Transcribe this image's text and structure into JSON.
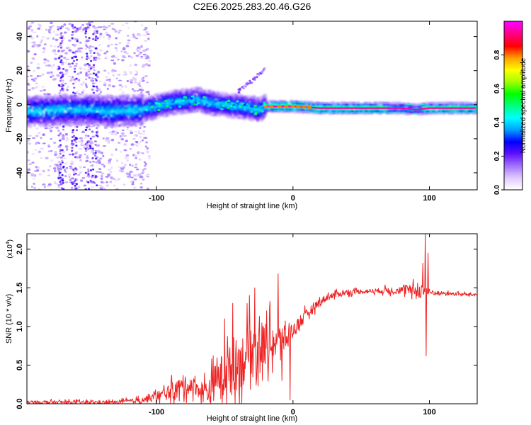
{
  "title": "C2E6.2025.283.20.46.G26",
  "chart_data": [
    {
      "type": "heatmap",
      "name": "spectrogram",
      "xlabel": "Height of straight line (km)",
      "ylabel": "Frequency (Hz)",
      "xlim": [
        -195,
        135
      ],
      "ylim": [
        -50,
        49
      ],
      "xticks": [
        -100,
        0,
        100
      ],
      "yticks": [
        -40,
        -20,
        0,
        20,
        40
      ],
      "colorbar": {
        "label": "Normalized spectral amplitude",
        "range": [
          0.0,
          1.0
        ],
        "ticks": [
          0.0,
          0.2,
          0.4,
          0.6,
          0.8
        ],
        "colors": [
          "#ffffff",
          "#e0c8ff",
          "#a070ff",
          "#6010ff",
          "#0000ff",
          "#00a0ff",
          "#00ffff",
          "#00ff80",
          "#00ff00",
          "#a0ff00",
          "#ffff00",
          "#ffa000",
          "#ff0000",
          "#ff0080",
          "#ff00ff"
        ]
      },
      "ridge": {
        "x": [
          -195,
          -170,
          -150,
          -130,
          -110,
          -100,
          -90,
          -80,
          -70,
          -60,
          -50,
          -40,
          -30,
          -25,
          -20,
          -10,
          0,
          20,
          40,
          60,
          80,
          90,
          100,
          120,
          135
        ],
        "y": [
          -4,
          -3,
          -3,
          -4,
          -3,
          -1,
          1,
          2,
          3,
          1,
          0,
          -1,
          -2,
          -3,
          -1,
          -1,
          -1,
          -2,
          -2,
          -2,
          -2,
          -3,
          -2,
          -2,
          -2
        ]
      },
      "branch": {
        "x": [
          -40,
          -30,
          -25,
          -20
        ],
        "y": [
          8,
          14,
          18,
          21
        ]
      }
    },
    {
      "type": "line",
      "name": "snr",
      "xlabel": "Height of straight line (km)",
      "ylabel": "SNR (10 * v/v)",
      "scale_label": "(x10",
      "scale_exponent": "4",
      "xlim": [
        -195,
        135
      ],
      "ylim": [
        0.0,
        2.2
      ],
      "xticks": [
        -100,
        0,
        100
      ],
      "yticks": [
        0.0,
        0.5,
        1.0,
        1.5,
        2.0
      ],
      "ytick_labels": [
        "0.0",
        "0.5",
        "1.0",
        "1.5",
        "2.0"
      ],
      "color": "#ee2222",
      "baseline": {
        "x": [
          -195,
          -130,
          -115,
          -105,
          -95,
          -85,
          -75,
          -65,
          -60,
          -55,
          -45,
          -35,
          -25,
          -15,
          -5,
          5,
          15,
          25,
          35,
          45,
          60,
          75,
          85,
          95,
          100,
          110,
          120,
          135
        ],
        "y": [
          0.02,
          0.02,
          0.04,
          0.07,
          0.12,
          0.2,
          0.25,
          0.15,
          0.2,
          0.35,
          0.45,
          0.6,
          0.75,
          0.8,
          0.85,
          1.05,
          1.25,
          1.38,
          1.43,
          1.45,
          1.46,
          1.47,
          1.47,
          1.46,
          1.44,
          1.43,
          1.42,
          1.41
        ]
      },
      "noise": {
        "x": [
          -195,
          -130,
          -115,
          -100,
          -90,
          -80,
          -70,
          -60,
          -50,
          -40,
          -30,
          -20,
          -10,
          0,
          10,
          20,
          30,
          40,
          60,
          80,
          90,
          95,
          100,
          110,
          135
        ],
        "y": [
          0.02,
          0.02,
          0.03,
          0.06,
          0.1,
          0.12,
          0.1,
          0.2,
          0.28,
          0.35,
          0.35,
          0.3,
          0.2,
          0.1,
          0.07,
          0.05,
          0.04,
          0.03,
          0.03,
          0.05,
          0.08,
          0.1,
          0.04,
          0.02,
          0.02
        ]
      },
      "spikes": [
        {
          "x": -50,
          "y": 1.1
        },
        {
          "x": -44,
          "y": 1.3
        },
        {
          "x": -32,
          "y": 1.4
        },
        {
          "x": -28,
          "y": 1.5
        },
        {
          "x": -11,
          "y": 1.68
        },
        {
          "x": -8,
          "y": 0.3
        },
        {
          "x": -2,
          "y": 0.05
        },
        {
          "x": 95,
          "y": 1.82
        },
        {
          "x": 97,
          "y": 2.2
        },
        {
          "x": 97.5,
          "y": 0.62
        },
        {
          "x": 99,
          "y": 1.95
        }
      ]
    }
  ]
}
